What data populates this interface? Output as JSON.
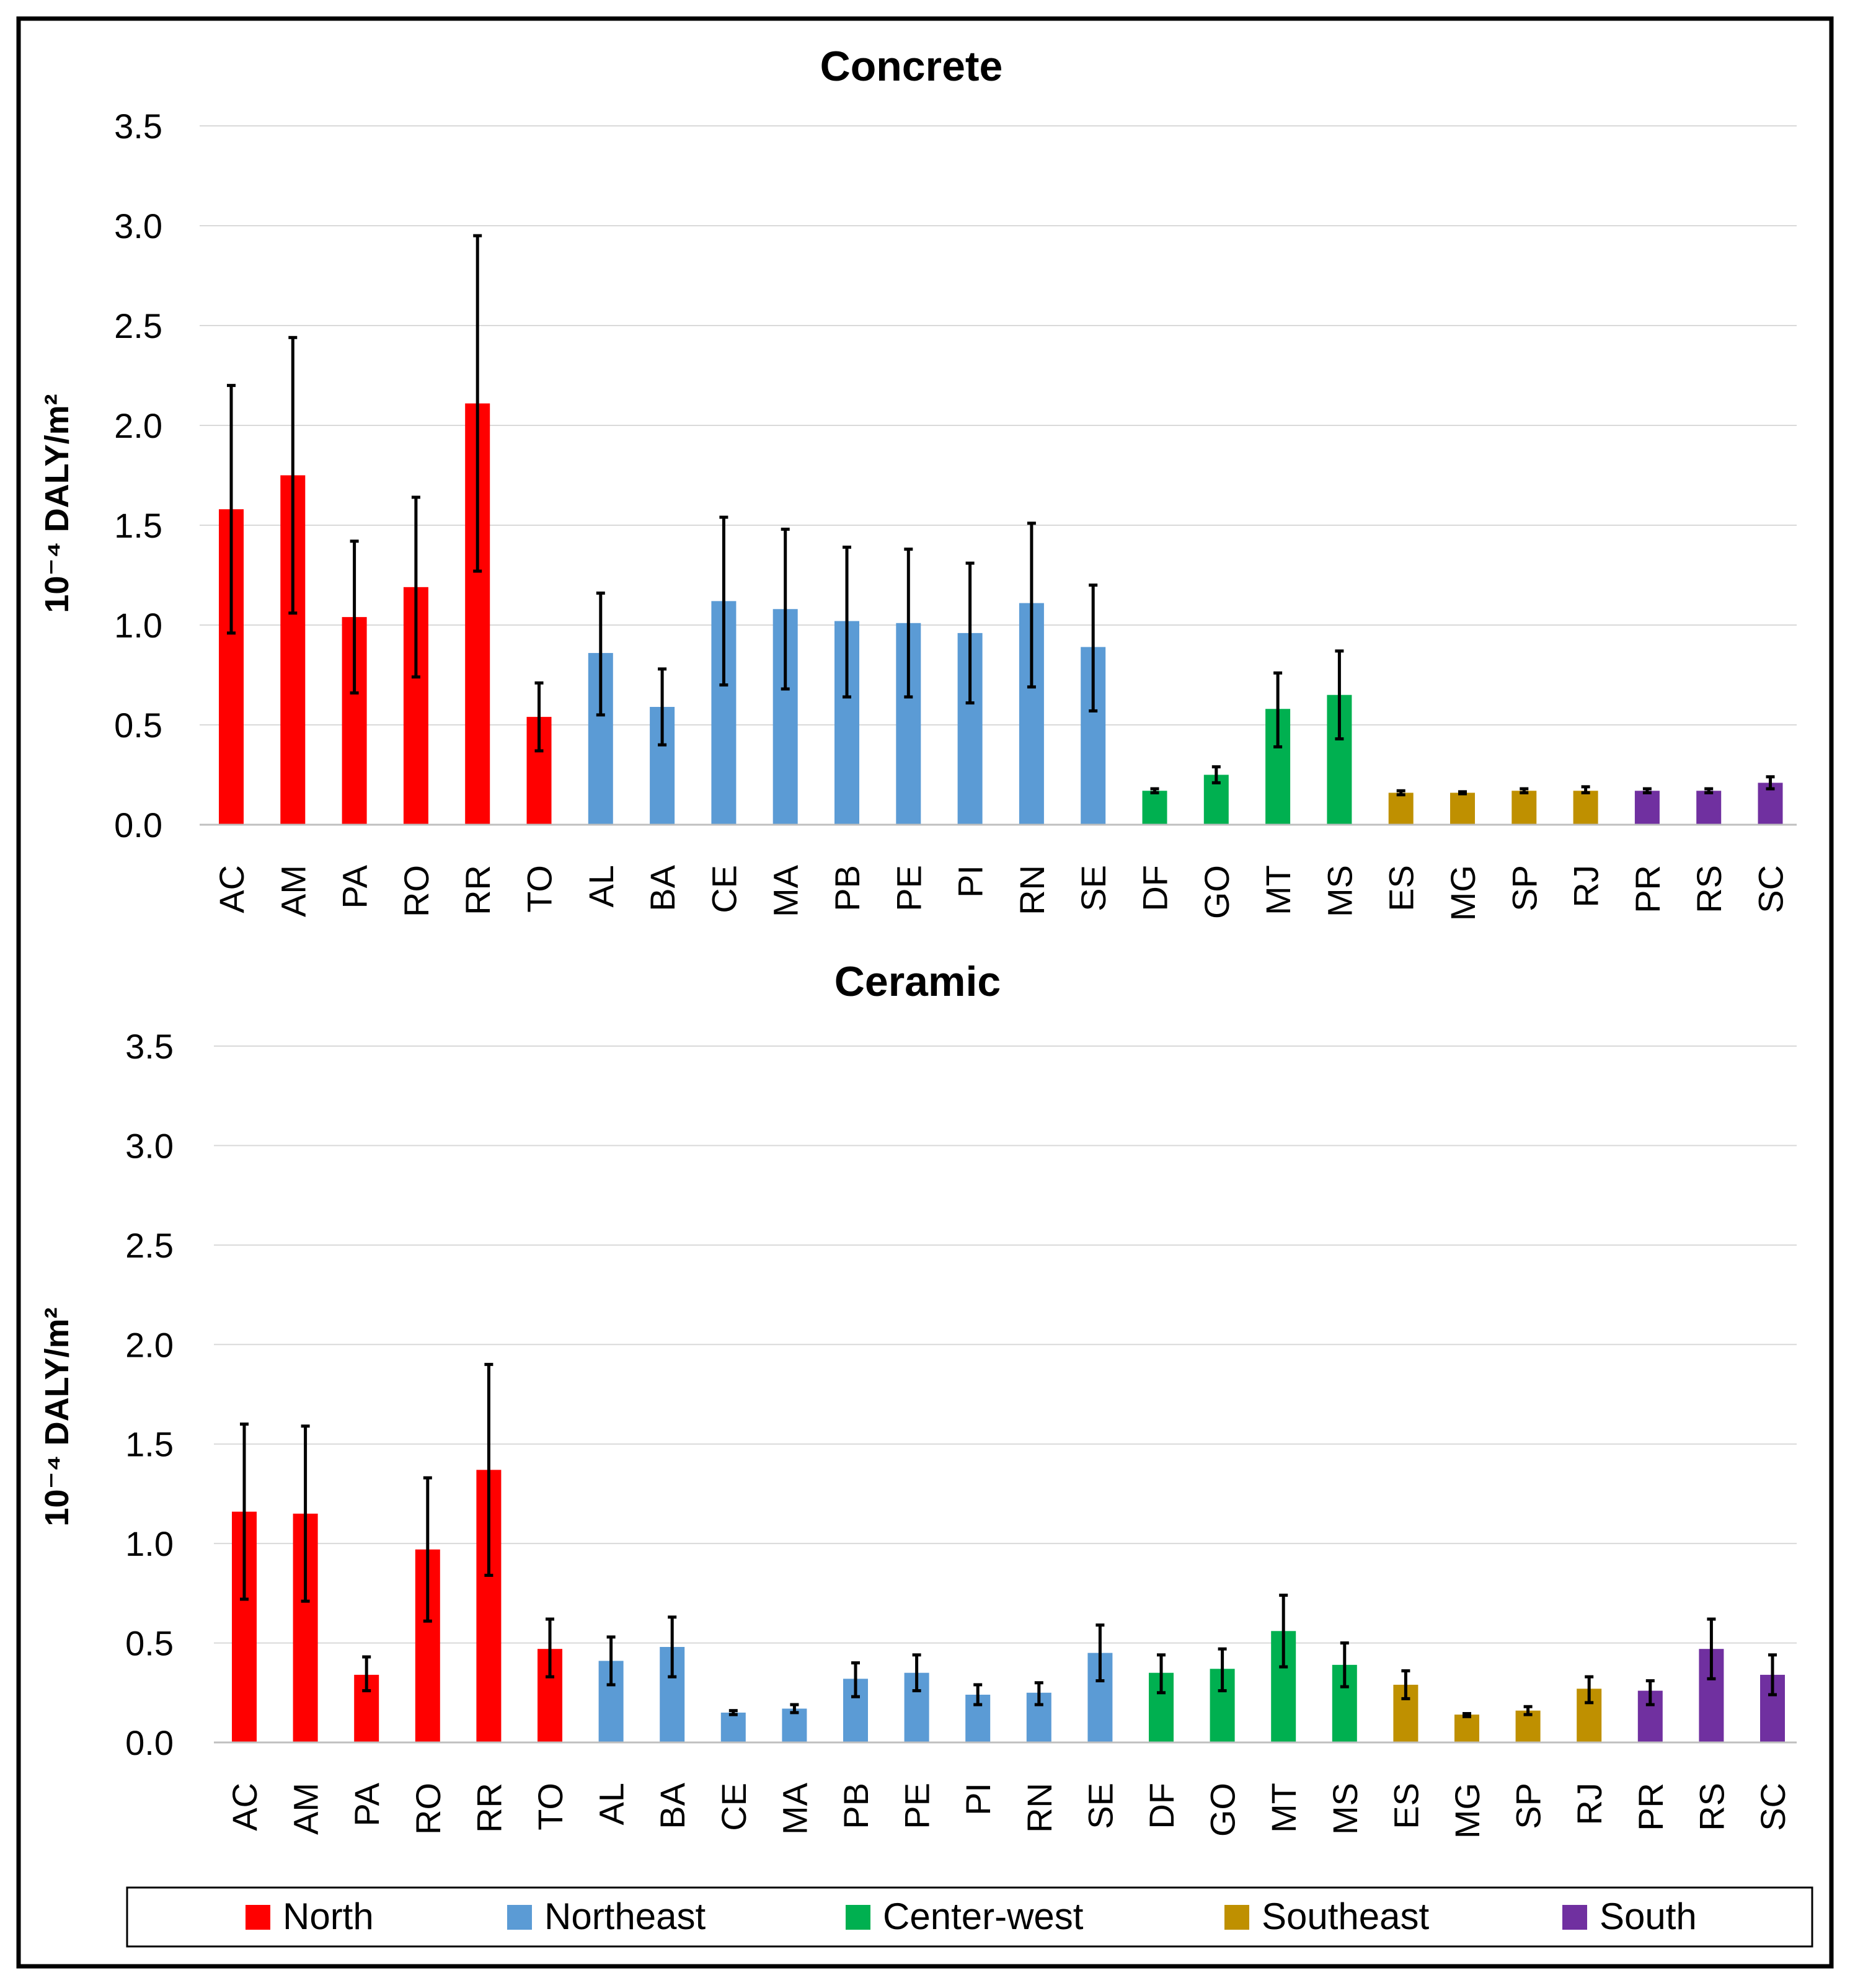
{
  "chart_data": [
    {
      "type": "bar",
      "title": "Concrete",
      "ylabel": "10⁻⁴ DALY/m²",
      "xlabel": "",
      "ylim": [
        0,
        3.5
      ],
      "yticks": [
        "0.0",
        "0.5",
        "1.0",
        "1.5",
        "2.0",
        "2.5",
        "3.0",
        "3.5"
      ],
      "grid": true,
      "categories": [
        "AC",
        "AM",
        "PA",
        "RO",
        "RR",
        "TO",
        "AL",
        "BA",
        "CE",
        "MA",
        "PB",
        "PE",
        "PI",
        "RN",
        "SE",
        "DF",
        "GO",
        "MT",
        "MS",
        "ES",
        "MG",
        "SP",
        "RJ",
        "PR",
        "RS",
        "SC"
      ],
      "regions": [
        "North",
        "North",
        "North",
        "North",
        "North",
        "North",
        "Northeast",
        "Northeast",
        "Northeast",
        "Northeast",
        "Northeast",
        "Northeast",
        "Northeast",
        "Northeast",
        "Northeast",
        "Center-west",
        "Center-west",
        "Center-west",
        "Center-west",
        "Southeast",
        "Southeast",
        "Southeast",
        "Southeast",
        "South",
        "South",
        "South"
      ],
      "values": [
        1.58,
        1.75,
        1.04,
        1.19,
        2.11,
        0.54,
        0.86,
        0.59,
        1.12,
        1.08,
        1.02,
        1.01,
        0.96,
        1.11,
        0.89,
        0.17,
        0.25,
        0.58,
        0.65,
        0.16,
        0.16,
        0.17,
        0.17,
        0.17,
        0.17,
        0.21
      ],
      "err_low": [
        0.96,
        1.06,
        0.66,
        0.74,
        1.27,
        0.37,
        0.55,
        0.4,
        0.7,
        0.68,
        0.64,
        0.64,
        0.61,
        0.69,
        0.57,
        0.16,
        0.21,
        0.39,
        0.43,
        0.15,
        0.155,
        0.16,
        0.16,
        0.16,
        0.16,
        0.18
      ],
      "err_high": [
        2.2,
        2.44,
        1.42,
        1.64,
        2.95,
        0.71,
        1.16,
        0.78,
        1.54,
        1.48,
        1.39,
        1.38,
        1.31,
        1.51,
        1.2,
        0.18,
        0.29,
        0.76,
        0.87,
        0.17,
        0.165,
        0.18,
        0.19,
        0.18,
        0.18,
        0.24
      ]
    },
    {
      "type": "bar",
      "title": "Ceramic",
      "ylabel": "10⁻⁴ DALY/m²",
      "xlabel": "",
      "ylim": [
        0,
        3.5
      ],
      "yticks": [
        "0.0",
        "0.5",
        "1.0",
        "1.5",
        "2.0",
        "2.5",
        "3.0",
        "3.5"
      ],
      "grid": true,
      "categories": [
        "AC",
        "AM",
        "PA",
        "RO",
        "RR",
        "TO",
        "AL",
        "BA",
        "CE",
        "MA",
        "PB",
        "PE",
        "PI",
        "RN",
        "SE",
        "DF",
        "GO",
        "MT",
        "MS",
        "ES",
        "MG",
        "SP",
        "RJ",
        "PR",
        "RS",
        "SC"
      ],
      "regions": [
        "North",
        "North",
        "North",
        "North",
        "North",
        "North",
        "Northeast",
        "Northeast",
        "Northeast",
        "Northeast",
        "Northeast",
        "Northeast",
        "Northeast",
        "Northeast",
        "Northeast",
        "Center-west",
        "Center-west",
        "Center-west",
        "Center-west",
        "Southeast",
        "Southeast",
        "Southeast",
        "Southeast",
        "South",
        "South",
        "South"
      ],
      "values": [
        1.16,
        1.15,
        0.34,
        0.97,
        1.37,
        0.47,
        0.41,
        0.48,
        0.15,
        0.17,
        0.32,
        0.35,
        0.24,
        0.25,
        0.45,
        0.35,
        0.37,
        0.56,
        0.39,
        0.29,
        0.14,
        0.16,
        0.27,
        0.26,
        0.47,
        0.34
      ],
      "err_low": [
        0.72,
        0.71,
        0.26,
        0.61,
        0.84,
        0.33,
        0.29,
        0.33,
        0.14,
        0.15,
        0.23,
        0.26,
        0.19,
        0.19,
        0.31,
        0.25,
        0.26,
        0.38,
        0.28,
        0.22,
        0.13,
        0.14,
        0.2,
        0.19,
        0.32,
        0.24
      ],
      "err_high": [
        1.6,
        1.59,
        0.43,
        1.33,
        1.9,
        0.62,
        0.53,
        0.63,
        0.16,
        0.19,
        0.4,
        0.44,
        0.29,
        0.3,
        0.59,
        0.44,
        0.47,
        0.74,
        0.5,
        0.36,
        0.145,
        0.18,
        0.33,
        0.31,
        0.62,
        0.44
      ]
    }
  ],
  "legend": {
    "items": [
      {
        "label": "North",
        "color": "#ff0000"
      },
      {
        "label": "Northeast",
        "color": "#5b9bd5"
      },
      {
        "label": "Center-west",
        "color": "#00b050"
      },
      {
        "label": "Southeast",
        "color": "#bf9000"
      },
      {
        "label": "South",
        "color": "#7030a0"
      }
    ]
  }
}
